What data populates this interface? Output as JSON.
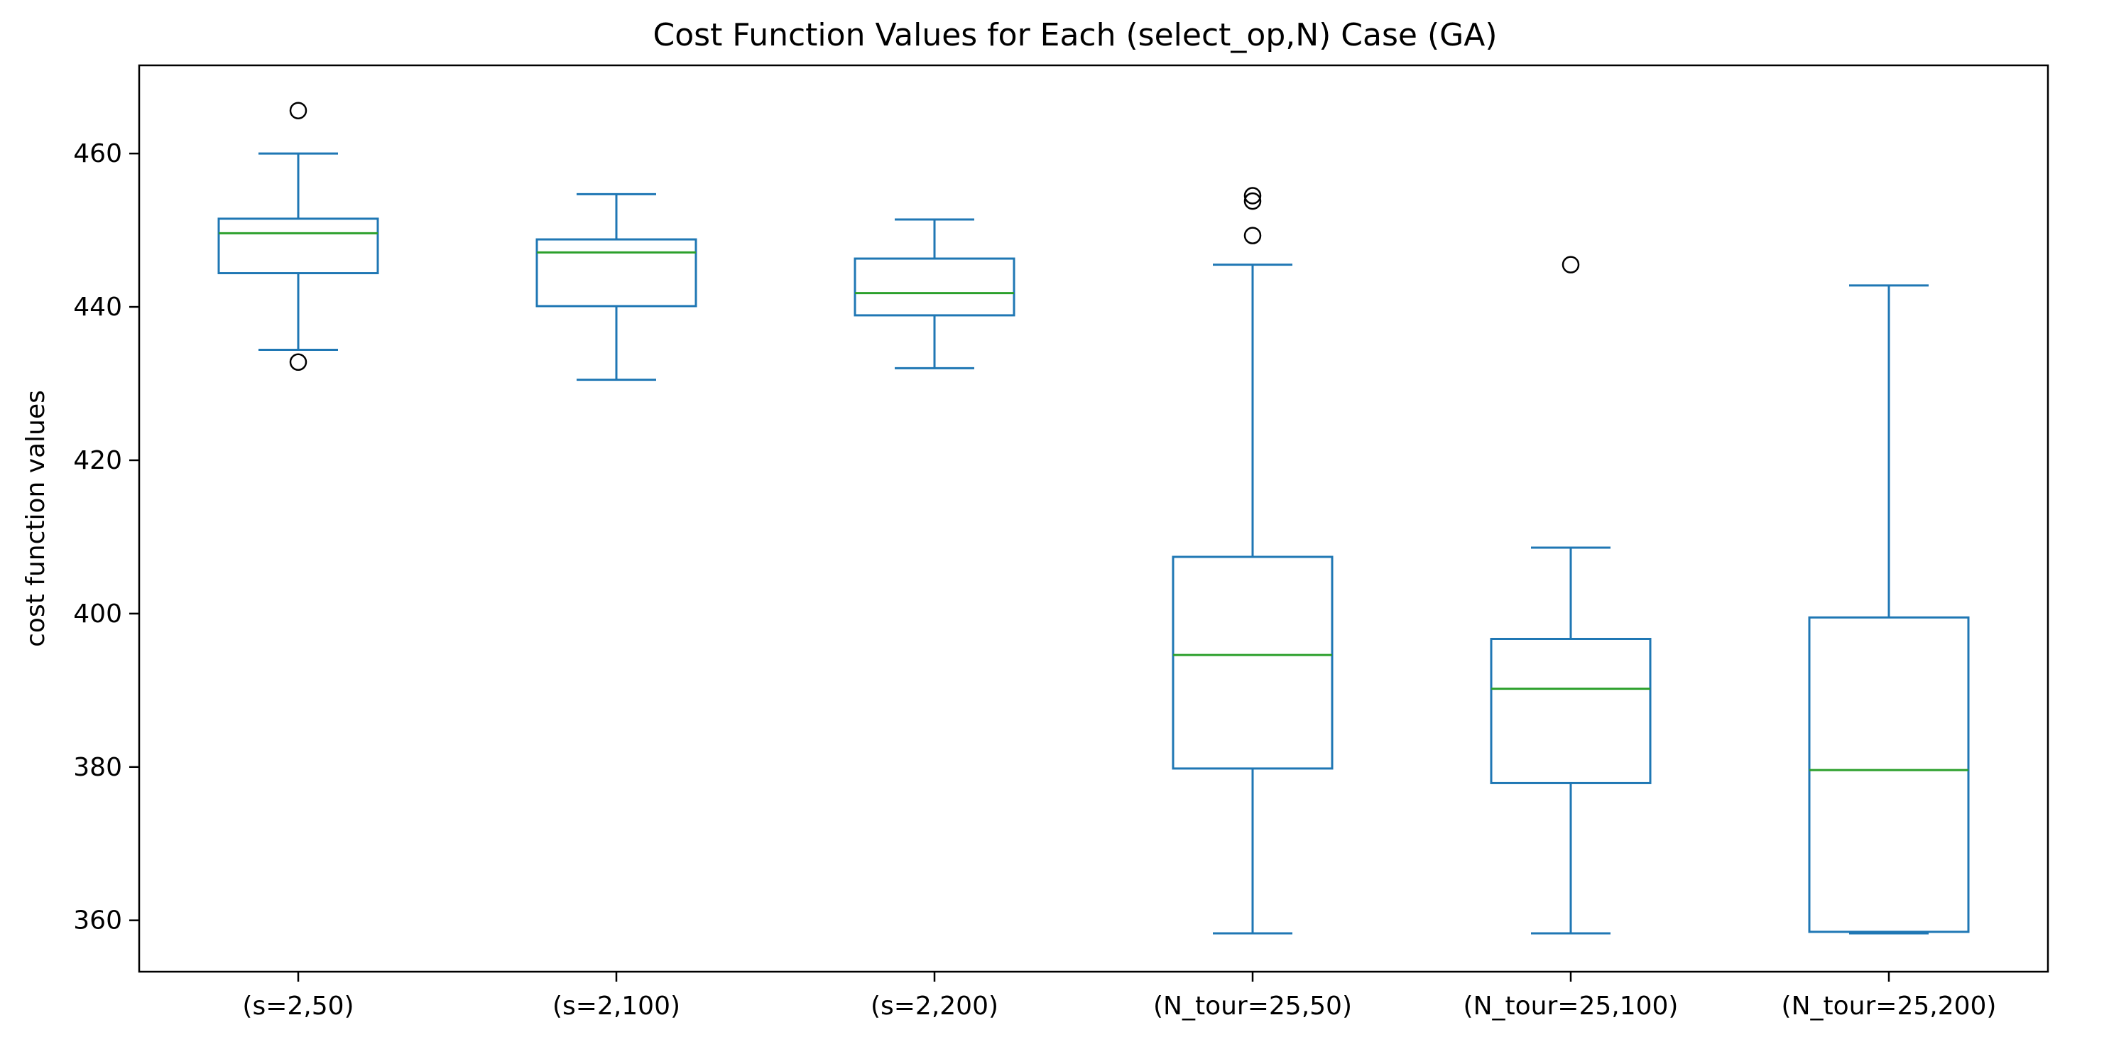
{
  "chart_data": {
    "type": "box",
    "title": "Cost Function Values for Each (select_op,N) Case (GA)",
    "xlabel": "",
    "ylabel": "cost function values",
    "ylim": [
      353.3,
      471.5
    ],
    "yticks": [
      360,
      380,
      400,
      420,
      440,
      460
    ],
    "grid": false,
    "legend": "none",
    "categories": [
      "(s=2,50)",
      "(s=2,100)",
      "(s=2,200)",
      "(N_tour=25,50)",
      "(N_tour=25,100)",
      "(N_tour=25,200)"
    ],
    "boxes": [
      {
        "whisker_low": 434.4,
        "q1": 444.4,
        "median": 449.6,
        "q3": 451.5,
        "whisker_high": 460.0,
        "outliers": [
          432.8,
          465.6
        ]
      },
      {
        "whisker_low": 430.5,
        "q1": 440.1,
        "median": 447.1,
        "q3": 448.8,
        "whisker_high": 454.7,
        "outliers": []
      },
      {
        "whisker_low": 432.0,
        "q1": 438.9,
        "median": 441.8,
        "q3": 446.3,
        "whisker_high": 451.4,
        "outliers": []
      },
      {
        "whisker_low": 358.3,
        "q1": 379.8,
        "median": 394.6,
        "q3": 407.4,
        "whisker_high": 445.5,
        "outliers": [
          449.3,
          453.8,
          454.5
        ]
      },
      {
        "whisker_low": 358.3,
        "q1": 377.9,
        "median": 390.2,
        "q3": 396.7,
        "whisker_high": 408.6,
        "outliers": [
          445.5
        ]
      },
      {
        "whisker_low": 358.3,
        "q1": 358.5,
        "median": 379.6,
        "q3": 399.5,
        "whisker_high": 442.8,
        "outliers": []
      }
    ],
    "colors": {
      "box": "#1f77b4",
      "median": "#2ca02c",
      "outlier": "#000000",
      "axes": "#000000"
    }
  }
}
